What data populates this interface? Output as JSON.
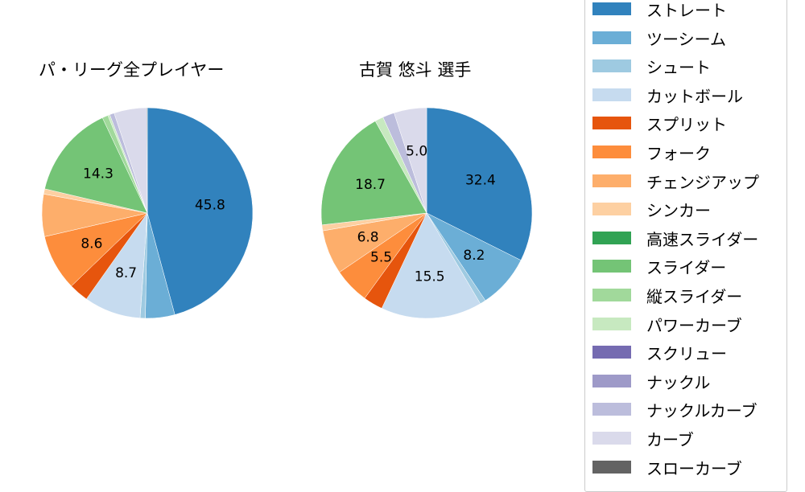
{
  "chart_data": [
    {
      "type": "pie",
      "title": "パ・リーグ全プレイヤー",
      "start_angle": "12 o'clock, clockwise",
      "categories": [
        "ストレート",
        "ツーシーム",
        "シュート",
        "カットボール",
        "スプリット",
        "フォーク",
        "チェンジアップ",
        "シンカー",
        "高速スライダー",
        "スライダー",
        "縦スライダー",
        "パワーカーブ",
        "スクリュー",
        "ナックル",
        "ナックルカーブ",
        "カーブ",
        "スローカーブ"
      ],
      "values": [
        45.8,
        4.5,
        0.8,
        8.7,
        3.0,
        8.6,
        6.5,
        0.8,
        0.0,
        14.3,
        0.9,
        0.3,
        0.0,
        0.0,
        0.7,
        5.0,
        0.1
      ],
      "labels_shown": {
        "ストレート": "45.8",
        "カットボール": "8.7",
        "フォーク": "8.6",
        "スライダー": "14.3"
      }
    },
    {
      "type": "pie",
      "title": "古賀 悠斗  選手",
      "start_angle": "12 o'clock, clockwise",
      "categories": [
        "ストレート",
        "ツーシーム",
        "シュート",
        "カットボール",
        "スプリット",
        "フォーク",
        "チェンジアップ",
        "シンカー",
        "高速スライダー",
        "スライダー",
        "縦スライダー",
        "パワーカーブ",
        "スクリュー",
        "ナックル",
        "ナックルカーブ",
        "カーブ",
        "スローカーブ"
      ],
      "values": [
        32.4,
        8.2,
        0.9,
        15.5,
        3.0,
        5.5,
        6.8,
        0.9,
        0.0,
        18.7,
        0.0,
        1.3,
        0.0,
        0.0,
        1.8,
        5.0,
        0.0
      ],
      "labels_shown": {
        "ストレート": "32.4",
        "ツーシーム": "8.2",
        "カットボール": "15.5",
        "フォーク": "5.5",
        "チェンジアップ": "6.8",
        "スライダー": "18.7",
        "カーブ": "5.0"
      }
    }
  ],
  "titles": {
    "left": "パ・リーグ全プレイヤー",
    "right": "古賀 悠斗  選手"
  },
  "legend": {
    "items": [
      {
        "label": "ストレート",
        "color": "#3182bd"
      },
      {
        "label": "ツーシーム",
        "color": "#6baed6"
      },
      {
        "label": "シュート",
        "color": "#9ecae1"
      },
      {
        "label": "カットボール",
        "color": "#c6dbef"
      },
      {
        "label": "スプリット",
        "color": "#e6550d"
      },
      {
        "label": "フォーク",
        "color": "#fd8d3c"
      },
      {
        "label": "チェンジアップ",
        "color": "#fdae6b"
      },
      {
        "label": "シンカー",
        "color": "#fdd0a2"
      },
      {
        "label": "高速スライダー",
        "color": "#31a354"
      },
      {
        "label": "スライダー",
        "color": "#74c476"
      },
      {
        "label": "縦スライダー",
        "color": "#a1d99b"
      },
      {
        "label": "パワーカーブ",
        "color": "#c7e9c0"
      },
      {
        "label": "スクリュー",
        "color": "#756bb1"
      },
      {
        "label": "ナックル",
        "color": "#9e9ac8"
      },
      {
        "label": "ナックルカーブ",
        "color": "#bcbddc"
      },
      {
        "label": "カーブ",
        "color": "#dadaeb"
      },
      {
        "label": "スローカーブ",
        "color": "#636363"
      }
    ]
  }
}
